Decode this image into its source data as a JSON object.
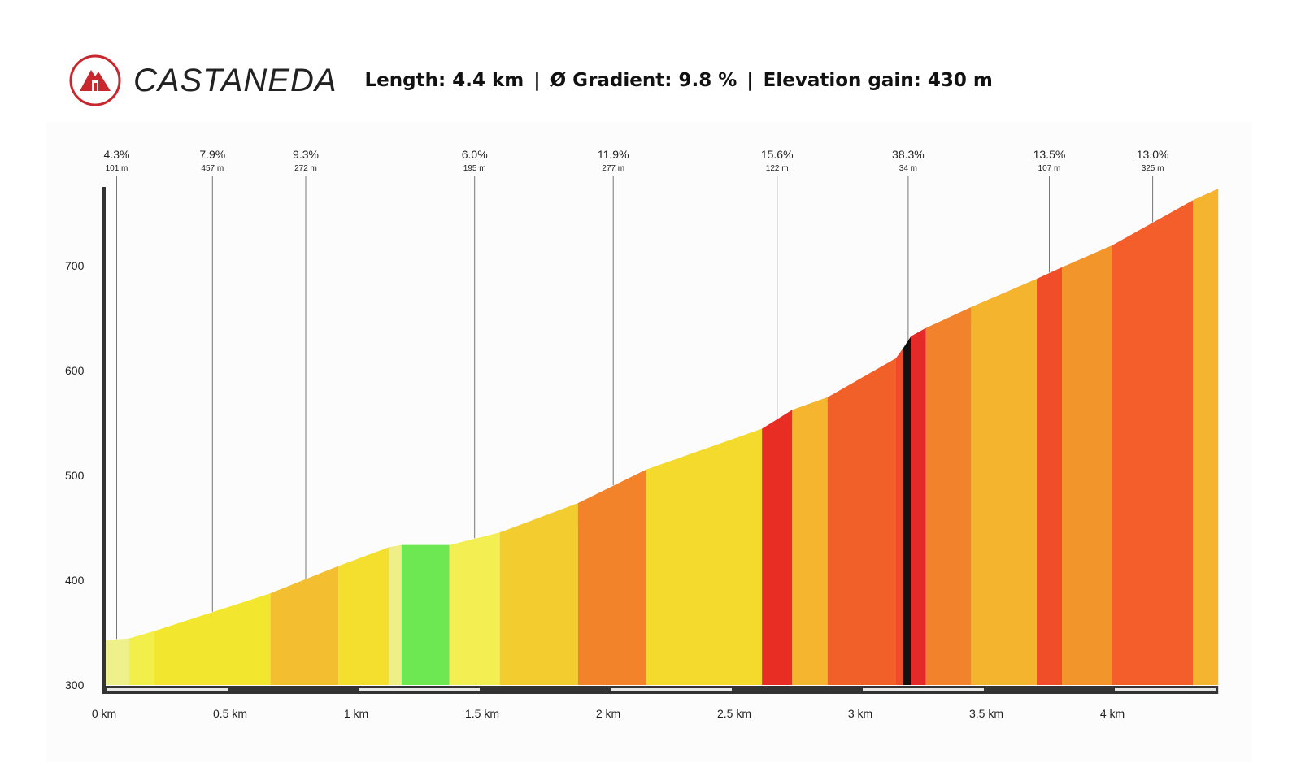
{
  "header": {
    "name": "CASTANEDA",
    "length_label": "Length: 4.4 km",
    "gradient_label": "Ø Gradient: 9.8 %",
    "elevation_label": "Elevation gain: 430 m",
    "separator": "|",
    "logo_icon": "mountain-icon",
    "logo_color": "#c8282d"
  },
  "chart_data": {
    "type": "area",
    "title": "CASTANEDA",
    "xlabel": "",
    "ylabel": "",
    "xlim": [
      0,
      4.45
    ],
    "ylim": [
      300,
      780
    ],
    "yticks": [
      300,
      400,
      500,
      600,
      700
    ],
    "xticks": [
      {
        "value": 0,
        "label": "0 km"
      },
      {
        "value": 0.5,
        "label": "0.5 km"
      },
      {
        "value": 1,
        "label": "1 km"
      },
      {
        "value": 1.5,
        "label": "1.5 km"
      },
      {
        "value": 2,
        "label": "2 km"
      },
      {
        "value": 2.5,
        "label": "2.5 km"
      },
      {
        "value": 3,
        "label": "3 km"
      },
      {
        "value": 3.5,
        "label": "3.5 km"
      },
      {
        "value": 4,
        "label": "4 km"
      }
    ],
    "segments": [
      {
        "x0": 0.0,
        "x1": 0.1,
        "y0": 343,
        "y1": 345,
        "color": "#eef08c"
      },
      {
        "x0": 0.1,
        "x1": 0.2,
        "y0": 345,
        "y1": 352,
        "color": "#f2ee4a"
      },
      {
        "x0": 0.2,
        "x1": 0.66,
        "y0": 352,
        "y1": 388,
        "color": "#f2e72e"
      },
      {
        "x0": 0.66,
        "x1": 0.93,
        "y0": 388,
        "y1": 414,
        "color": "#f3bf30"
      },
      {
        "x0": 0.93,
        "x1": 1.13,
        "y0": 414,
        "y1": 432,
        "color": "#f4df2e"
      },
      {
        "x0": 1.13,
        "x1": 1.18,
        "y0": 432,
        "y1": 434,
        "color": "#f0ee86"
      },
      {
        "x0": 1.18,
        "x1": 1.37,
        "y0": 434,
        "y1": 434,
        "color": "#6ee852"
      },
      {
        "x0": 1.37,
        "x1": 1.57,
        "y0": 434,
        "y1": 446,
        "color": "#f3ee52"
      },
      {
        "x0": 1.57,
        "x1": 1.88,
        "y0": 446,
        "y1": 474,
        "color": "#f3cd30"
      },
      {
        "x0": 1.88,
        "x1": 2.15,
        "y0": 474,
        "y1": 506,
        "color": "#f2832b"
      },
      {
        "x0": 2.15,
        "x1": 2.61,
        "y0": 506,
        "y1": 545,
        "color": "#f5da2e"
      },
      {
        "x0": 2.61,
        "x1": 2.73,
        "y0": 545,
        "y1": 563,
        "color": "#e82e24"
      },
      {
        "x0": 2.73,
        "x1": 2.87,
        "y0": 563,
        "y1": 575,
        "color": "#f5b52e"
      },
      {
        "x0": 2.87,
        "x1": 3.14,
        "y0": 575,
        "y1": 612,
        "color": "#f2602a"
      },
      {
        "x0": 3.14,
        "x1": 3.17,
        "y0": 612,
        "y1": 622,
        "color": "#f04a2a"
      },
      {
        "x0": 3.17,
        "x1": 3.2,
        "y0": 622,
        "y1": 633,
        "color": "#111111"
      },
      {
        "x0": 3.2,
        "x1": 3.26,
        "y0": 633,
        "y1": 641,
        "color": "#e42a28"
      },
      {
        "x0": 3.26,
        "x1": 3.44,
        "y0": 641,
        "y1": 661,
        "color": "#f2822c"
      },
      {
        "x0": 3.44,
        "x1": 3.7,
        "y0": 661,
        "y1": 688,
        "color": "#f5b42e"
      },
      {
        "x0": 3.7,
        "x1": 3.8,
        "y0": 688,
        "y1": 699,
        "color": "#f04e28"
      },
      {
        "x0": 3.8,
        "x1": 4.0,
        "y0": 699,
        "y1": 720,
        "color": "#f2962c"
      },
      {
        "x0": 4.0,
        "x1": 4.32,
        "y0": 720,
        "y1": 763,
        "color": "#f35e2a"
      },
      {
        "x0": 4.32,
        "x1": 4.42,
        "y0": 763,
        "y1": 774,
        "color": "#f4b42f"
      }
    ],
    "gradient_annotations": [
      {
        "x": 0.05,
        "gradient": "4.3%",
        "length": "101 m"
      },
      {
        "x": 0.43,
        "gradient": "7.9%",
        "length": "457 m"
      },
      {
        "x": 0.8,
        "gradient": "9.3%",
        "length": "272 m"
      },
      {
        "x": 1.47,
        "gradient": "6.0%",
        "length": "195 m"
      },
      {
        "x": 2.02,
        "gradient": "11.9%",
        "length": "277 m"
      },
      {
        "x": 2.67,
        "gradient": "15.6%",
        "length": "122 m"
      },
      {
        "x": 3.19,
        "gradient": "38.3%",
        "length": "34 m"
      },
      {
        "x": 3.75,
        "gradient": "13.5%",
        "length": "107 m"
      },
      {
        "x": 4.16,
        "gradient": "13.0%",
        "length": "325 m"
      }
    ]
  }
}
